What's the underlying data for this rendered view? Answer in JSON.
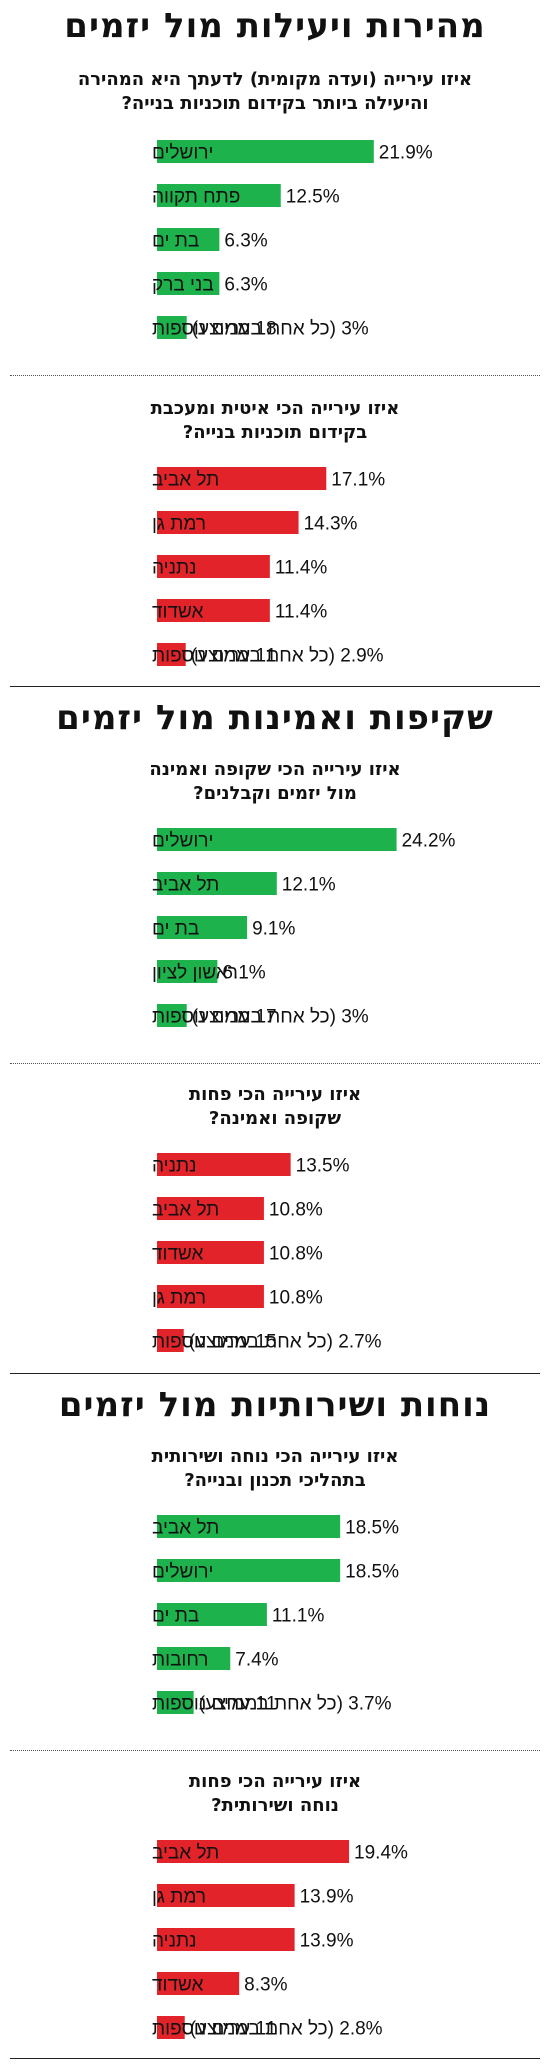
{
  "sections": [
    {
      "title": "מהירות ויעילות מול יזמים"
    },
    {
      "title": "שקיפות ואמינות מול יזמים"
    },
    {
      "title": "נוחות ושירותיות מול יזמים"
    }
  ],
  "questions": [
    {
      "line1": "איזו עירייה (ועדה מקומית) לדעתך היא המהירה",
      "line2": "והיעילה ביותר בקידום תוכניות בנייה?"
    },
    {
      "line1": "איזו עירייה הכי איטית ומעכבת",
      "line2": "בקידום תוכניות בנייה?"
    },
    {
      "line1": "איזו עירייה הכי שקופה ואמינה",
      "line2": "מול יזמים וקבלנים?"
    },
    {
      "line1": "איזו עירייה הכי פחות",
      "line2": "שקופה ואמינה?"
    },
    {
      "line1": "איזו עירייה הכי נוחה ושירותית",
      "line2": "בתהליכי תכנון ובנייה?"
    },
    {
      "line1": "איזו עירייה הכי פחות",
      "line2": "נוחה ושירותית?"
    }
  ],
  "colors": {
    "positive": "#1db24b",
    "negative": "#e3232a",
    "text": "#111111",
    "rule": "#222222"
  },
  "chart_data": [
    {
      "type": "bar",
      "orientation": "horizontal",
      "color": "positive",
      "categories": [
        "ירושלים",
        "פתח תקווה",
        "בת ים",
        "בני ברק",
        "18 ערים נוספות"
      ],
      "values": [
        21.9,
        12.5,
        6.3,
        6.3,
        3
      ],
      "value_labels": [
        "21.9%",
        "12.5%",
        "6.3%",
        "6.3%",
        "(כל אחת בממוצע) 3%"
      ]
    },
    {
      "type": "bar",
      "orientation": "horizontal",
      "color": "negative",
      "categories": [
        "תל אביב",
        "רמת גן",
        "נתניה",
        "אשדוד",
        "11 ערים נוספות"
      ],
      "values": [
        17.1,
        14.3,
        11.4,
        11.4,
        2.9
      ],
      "value_labels": [
        "17.1%",
        "14.3%",
        "11.4%",
        "11.4%",
        "(כל אחת בממוצע) 2.9%"
      ]
    },
    {
      "type": "bar",
      "orientation": "horizontal",
      "color": "positive",
      "categories": [
        "ירושלים",
        "תל אביב",
        "בת ים",
        "ראשון לציון",
        "17 ערים נוספות"
      ],
      "values": [
        24.2,
        12.1,
        9.1,
        6.1,
        3
      ],
      "value_labels": [
        "24.2%",
        "12.1%",
        "9.1%",
        "6.1%",
        "(כל אחת בממוצע) 3%"
      ]
    },
    {
      "type": "bar",
      "orientation": "horizontal",
      "color": "negative",
      "categories": [
        "נתניה",
        "תל אביב",
        "אשדוד",
        "רמת גן",
        "15 ערים נוספות"
      ],
      "values": [
        13.5,
        10.8,
        10.8,
        10.8,
        2.7
      ],
      "value_labels": [
        "13.5%",
        "10.8%",
        "10.8%",
        "10.8%",
        "(כל אחת בממוצע) 2.7%"
      ]
    },
    {
      "type": "bar",
      "orientation": "horizontal",
      "color": "positive",
      "categories": [
        "תל אביב",
        "ירושלים",
        "בת ים",
        "רחובות",
        "11 ערים נוספות"
      ],
      "values": [
        18.5,
        18.5,
        11.1,
        7.4,
        3.7
      ],
      "value_labels": [
        "18.5%",
        "18.5%",
        "11.1%",
        "7.4%",
        "(כל אחת בממוצע) 3.7%"
      ]
    },
    {
      "type": "bar",
      "orientation": "horizontal",
      "color": "negative",
      "categories": [
        "תל אביב",
        "רמת גן",
        "נתניה",
        "אשדוד",
        "11 ערים נוספות"
      ],
      "values": [
        19.4,
        13.9,
        13.9,
        8.3,
        2.8
      ],
      "value_labels": [
        "19.4%",
        "13.9%",
        "13.9%",
        "8.3%",
        "(כל אחת בממוצע) 2.8%"
      ]
    }
  ]
}
